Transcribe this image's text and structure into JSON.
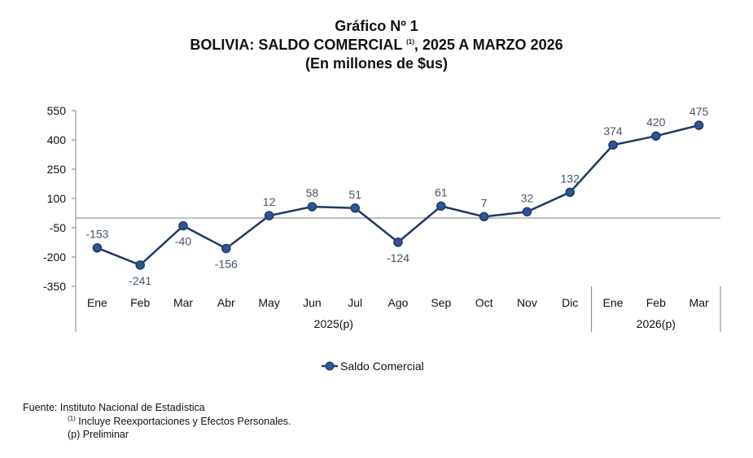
{
  "chart_data": {
    "type": "line",
    "title_line1": "Gráfico Nº 1",
    "title_line2_pre": "BOLIVIA: SALDO COMERCIAL",
    "title_line2_sup": "(1)",
    "title_line2_post": ", 2025 A MARZO 2026",
    "subtitle": "(En millones de $us)",
    "categories": [
      "Ene",
      "Feb",
      "Mar",
      "Abr",
      "May",
      "Jun",
      "Jul",
      "Ago",
      "Sep",
      "Oct",
      "Nov",
      "Dic",
      "Ene",
      "Feb",
      "Mar"
    ],
    "groups": [
      {
        "label": "2025(p)",
        "count": 12
      },
      {
        "label": "2026(p)",
        "count": 3
      }
    ],
    "series": [
      {
        "name": "Saldo Comercial",
        "color": "#1F3864",
        "values": [
          -153,
          -241,
          -40,
          -156,
          12,
          58,
          51,
          -124,
          61,
          7,
          32,
          132,
          374,
          420,
          475
        ]
      }
    ],
    "label_below": [
      false,
      true,
      true,
      true,
      false,
      false,
      false,
      true,
      false,
      false,
      false,
      false,
      false,
      false,
      false
    ],
    "yticks": [
      550,
      400,
      250,
      100,
      -50,
      -200,
      -350
    ],
    "ylim": [
      -350,
      550
    ],
    "legend_position": "bottom-center",
    "grid": false
  },
  "footer": {
    "source": "Fuente: Instituto Nacional de Estadística",
    "note_sup": "(1)",
    "note": "Incluye Reexportaciones y Efectos Personales.",
    "preliminary": "(p) Preliminar"
  }
}
